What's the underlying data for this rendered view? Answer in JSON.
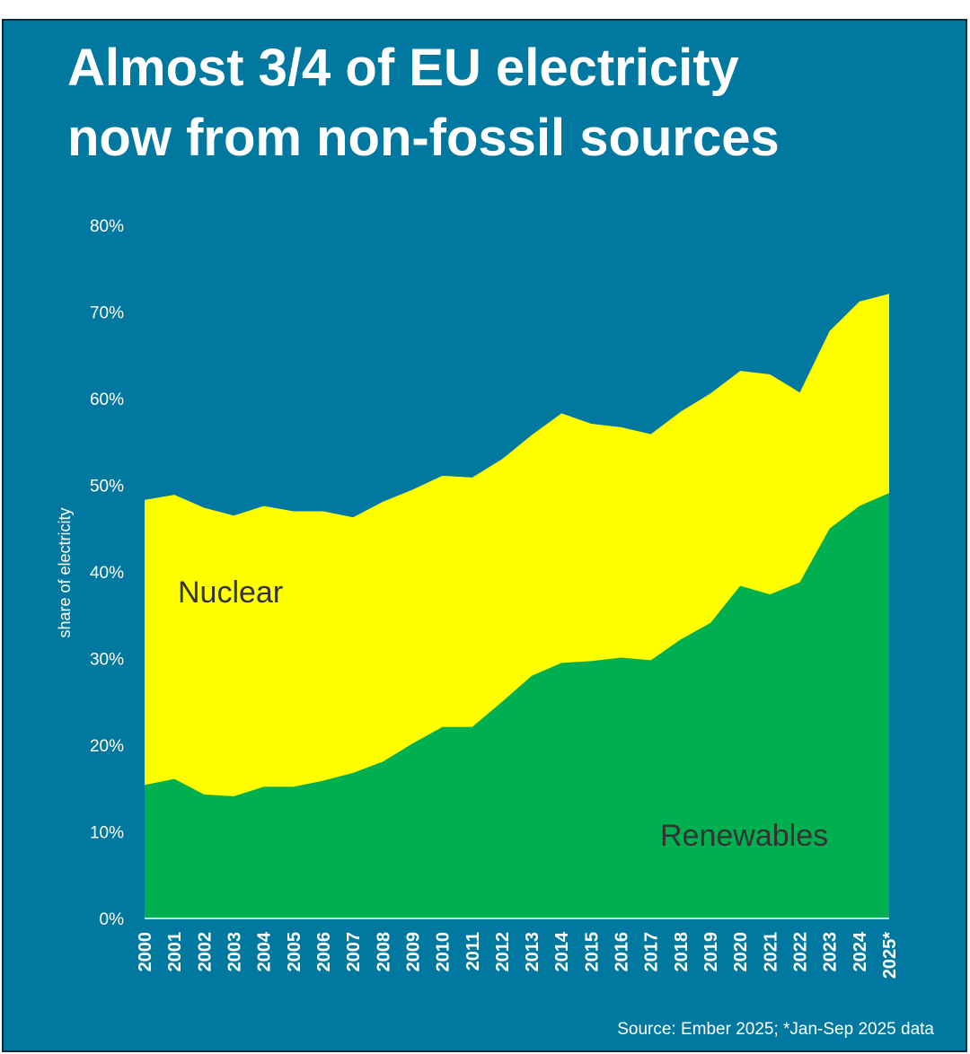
{
  "chart_data": {
    "type": "stacked-area",
    "title": [
      "Almost 3/4 of EU electricity",
      "now from non-fossil sources"
    ],
    "y_label": "share of electricity",
    "source": "Source: Ember 2025; *Jan-Sep 2025 data",
    "categories": [
      "2000",
      "2001",
      "2002",
      "2003",
      "2004",
      "2005",
      "2006",
      "2007",
      "2008",
      "2009",
      "2010",
      "2011",
      "2012",
      "2013",
      "2014",
      "2015",
      "2016",
      "2017",
      "2018",
      "2019",
      "2020",
      "2021",
      "2022",
      "2023",
      "2024",
      "2025*"
    ],
    "series": [
      {
        "name": "Renewables",
        "color": "#00b050",
        "values": [
          15.4,
          16.1,
          14.3,
          14.1,
          15.2,
          15.2,
          15.9,
          16.8,
          18.1,
          20.2,
          22.1,
          22.1,
          25.0,
          28.0,
          29.5,
          29.7,
          30.1,
          29.8,
          32.2,
          34.1,
          38.4,
          37.4,
          38.8,
          45.0,
          47.6,
          49.1
        ]
      },
      {
        "name": "Nuclear",
        "color": "#ffff00",
        "values": [
          32.9,
          32.8,
          33.1,
          32.4,
          32.4,
          31.8,
          31.1,
          29.5,
          30.0,
          29.3,
          29.0,
          28.8,
          28.0,
          27.8,
          28.8,
          27.4,
          26.6,
          26.1,
          26.3,
          26.5,
          24.8,
          25.4,
          21.9,
          22.8,
          23.6,
          23.0
        ]
      }
    ],
    "ylim": [
      0,
      80
    ],
    "yticks": [
      {
        "value": 0,
        "label": "0%"
      },
      {
        "value": 10,
        "label": "10%"
      },
      {
        "value": 20,
        "label": "20%"
      },
      {
        "value": 30,
        "label": "30%"
      },
      {
        "value": 40,
        "label": "40%"
      },
      {
        "value": 50,
        "label": "50%"
      },
      {
        "value": 60,
        "label": "60%"
      },
      {
        "value": 70,
        "label": "70%"
      },
      {
        "value": 80,
        "label": "80%"
      }
    ],
    "grid": false
  }
}
